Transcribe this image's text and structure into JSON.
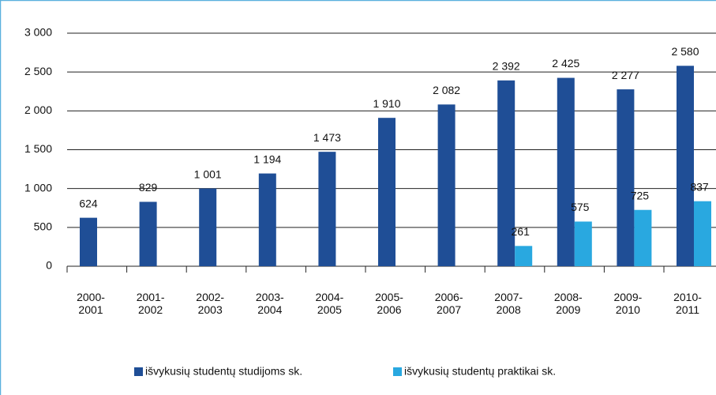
{
  "chart_data": {
    "type": "bar",
    "categories": [
      "2000-2001",
      "2001-2002",
      "2002-2003",
      "2003-2004",
      "2004-2005",
      "2005-2006",
      "2006-2007",
      "2007-2008",
      "2008-2009",
      "2009-2010",
      "2010-2011"
    ],
    "series": [
      {
        "name": "išvykusių studentų studijoms sk.",
        "color": "#1f4e96",
        "values": [
          624,
          829,
          1001,
          1194,
          1473,
          1910,
          2082,
          2392,
          2425,
          2277,
          2580
        ],
        "value_labels": [
          "624",
          "829",
          "1 001",
          "1 194",
          "1 473",
          "1 910",
          "2 082",
          "2 392",
          "2 425",
          "2 277",
          "2 580"
        ]
      },
      {
        "name": "išvykusių studentų praktikai sk.",
        "color": "#29a8e0",
        "values": [
          null,
          null,
          null,
          null,
          null,
          null,
          null,
          261,
          575,
          725,
          837
        ]
      }
    ],
    "ylim": [
      0,
      3000
    ],
    "yticks": [
      0,
      500,
      {
        "value": 1000,
        "label": "1 000"
      },
      {
        "value": 1500,
        "label": "1 500"
      },
      {
        "value": 2000,
        "label": "2 000"
      },
      {
        "value": 2500,
        "label": "2 500"
      },
      {
        "value": 3000,
        "label": "3 000"
      }
    ],
    "grid": true,
    "legend": "bottom"
  }
}
